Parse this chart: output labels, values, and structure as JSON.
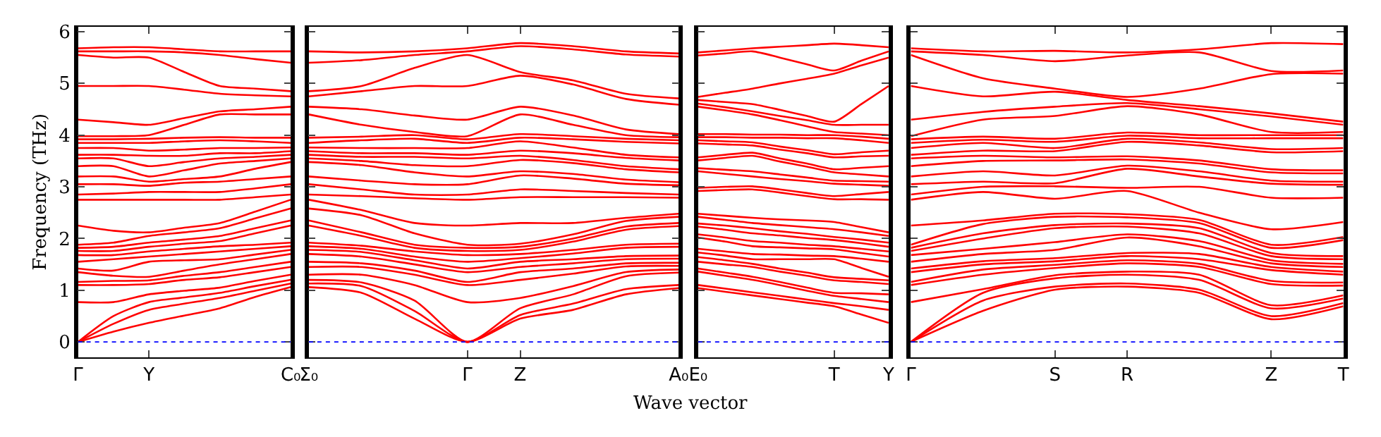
{
  "chart_data": [
    {
      "type": "line",
      "ylabel": "Frequency (THz)",
      "categories": [
        "Γ",
        null,
        "Y",
        null,
        null,
        null,
        "C₀"
      ],
      "ylim": [
        -0.3,
        6.1
      ],
      "yticks": [
        0,
        1,
        2,
        3,
        4,
        5,
        6
      ],
      "ref_lines": [
        {
          "axis": "y",
          "value": 0,
          "color": "#0000ff",
          "line_style": "dotted"
        }
      ],
      "series": [
        {
          "color": "#ff0000",
          "values": [
            0,
            0.2,
            0.37,
            0.51,
            0.65,
            0.87,
            1.06
          ]
        },
        {
          "color": "#ff0000",
          "values": [
            0,
            0.35,
            0.62,
            0.74,
            0.85,
            0.99,
            1.13
          ]
        },
        {
          "color": "#ff0000",
          "values": [
            0,
            0.5,
            0.77,
            0.86,
            0.95,
            1.08,
            1.2
          ]
        },
        {
          "color": "#ff0000",
          "values": [
            0.77,
            0.77,
            0.92,
            0.99,
            1.05,
            1.18,
            1.3
          ]
        },
        {
          "color": "#ff0000",
          "values": [
            1.1,
            1.1,
            1.12,
            1.2,
            1.25,
            1.35,
            1.45
          ]
        },
        {
          "color": "#ff0000",
          "values": [
            1.16,
            1.18,
            1.19,
            1.28,
            1.35,
            1.45,
            1.55
          ]
        },
        {
          "color": "#ff0000",
          "values": [
            1.35,
            1.28,
            1.26,
            1.38,
            1.5,
            1.6,
            1.7
          ]
        },
        {
          "color": "#ff0000",
          "values": [
            1.42,
            1.38,
            1.55,
            1.58,
            1.6,
            1.69,
            1.78
          ]
        },
        {
          "color": "#ff0000",
          "values": [
            1.55,
            1.6,
            1.65,
            1.7,
            1.75,
            1.8,
            1.85
          ]
        },
        {
          "color": "#ff0000",
          "values": [
            1.68,
            1.68,
            1.75,
            1.8,
            1.85,
            1.88,
            1.92
          ]
        },
        {
          "color": "#ff0000",
          "values": [
            1.76,
            1.76,
            1.84,
            1.9,
            1.95,
            2.1,
            2.25
          ]
        },
        {
          "color": "#ff0000",
          "values": [
            1.82,
            1.84,
            1.92,
            1.98,
            2.05,
            2.2,
            2.35
          ]
        },
        {
          "color": "#ff0000",
          "values": [
            1.88,
            1.92,
            2.05,
            2.12,
            2.2,
            2.39,
            2.58
          ]
        },
        {
          "color": "#ff0000",
          "values": [
            2.25,
            2.15,
            2.12,
            2.21,
            2.3,
            2.52,
            2.75
          ]
        },
        {
          "color": "#ff0000",
          "values": [
            2.75,
            2.75,
            2.75,
            2.75,
            2.75,
            2.8,
            2.85
          ]
        },
        {
          "color": "#ff0000",
          "values": [
            2.85,
            2.87,
            2.9,
            2.9,
            2.9,
            2.97,
            3.05
          ]
        },
        {
          "color": "#ff0000",
          "values": [
            3.05,
            3.05,
            3.02,
            3.08,
            3.1,
            3.15,
            3.2
          ]
        },
        {
          "color": "#ff0000",
          "values": [
            3.2,
            3.2,
            3.1,
            3.15,
            3.2,
            3.35,
            3.48
          ]
        },
        {
          "color": "#ff0000",
          "values": [
            3.4,
            3.4,
            3.2,
            3.32,
            3.45,
            3.5,
            3.55
          ]
        },
        {
          "color": "#ff0000",
          "values": [
            3.55,
            3.55,
            3.4,
            3.48,
            3.55,
            3.58,
            3.62
          ]
        },
        {
          "color": "#ff0000",
          "values": [
            3.62,
            3.62,
            3.6,
            3.6,
            3.65,
            3.65,
            3.69
          ]
        },
        {
          "color": "#ff0000",
          "values": [
            3.75,
            3.75,
            3.7,
            3.72,
            3.75,
            3.75,
            3.76
          ]
        },
        {
          "color": "#ff0000",
          "values": [
            3.85,
            3.85,
            3.85,
            3.88,
            3.9,
            3.88,
            3.85
          ]
        },
        {
          "color": "#ff0000",
          "values": [
            3.92,
            3.92,
            3.93,
            3.95,
            3.96,
            3.95,
            3.95
          ]
        },
        {
          "color": "#ff0000",
          "values": [
            3.98,
            3.98,
            4.0,
            4.2,
            4.4,
            4.4,
            4.4
          ]
        },
        {
          "color": "#ff0000",
          "values": [
            4.3,
            4.25,
            4.2,
            4.33,
            4.46,
            4.5,
            4.55
          ]
        },
        {
          "color": "#ff0000",
          "values": [
            4.95,
            4.95,
            4.95,
            4.88,
            4.8,
            4.77,
            4.75
          ]
        },
        {
          "color": "#ff0000",
          "values": [
            5.55,
            5.5,
            5.5,
            5.22,
            4.95,
            4.9,
            4.85
          ]
        },
        {
          "color": "#ff0000",
          "values": [
            5.62,
            5.62,
            5.62,
            5.6,
            5.55,
            5.47,
            5.4
          ]
        },
        {
          "color": "#ff0000",
          "values": [
            5.68,
            5.7,
            5.7,
            5.66,
            5.62,
            5.62,
            5.62
          ]
        }
      ]
    },
    {
      "type": "line",
      "tick_labels": "x",
      "categories": [
        "Σ₀",
        null,
        null,
        "Γ",
        "Z",
        null,
        null,
        "A₀"
      ],
      "ylim": [
        -0.3,
        6.1
      ],
      "yticks": [
        0,
        1,
        2,
        3,
        4,
        5,
        6
      ],
      "ref_lines": [
        {
          "axis": "y",
          "value": 0,
          "color": "#0000ff",
          "line_style": "dotted"
        }
      ],
      "series": [
        {
          "color": "#ff0000",
          "values": [
            1.06,
            0.95,
            0.45,
            0,
            0.45,
            0.62,
            0.92,
            1.04
          ]
        },
        {
          "color": "#ff0000",
          "values": [
            1.13,
            1.08,
            0.6,
            0,
            0.52,
            0.74,
            1.02,
            1.1
          ]
        },
        {
          "color": "#ff0000",
          "values": [
            1.2,
            1.15,
            0.8,
            0,
            0.65,
            0.92,
            1.27,
            1.34
          ]
        },
        {
          "color": "#ff0000",
          "values": [
            1.3,
            1.3,
            1.1,
            0.77,
            0.85,
            1.08,
            1.35,
            1.4
          ]
        },
        {
          "color": "#ff0000",
          "values": [
            1.45,
            1.45,
            1.3,
            1.1,
            1.2,
            1.32,
            1.46,
            1.47
          ]
        },
        {
          "color": "#ff0000",
          "values": [
            1.55,
            1.52,
            1.38,
            1.16,
            1.35,
            1.42,
            1.52,
            1.53
          ]
        },
        {
          "color": "#ff0000",
          "values": [
            1.7,
            1.65,
            1.5,
            1.35,
            1.45,
            1.52,
            1.6,
            1.61
          ]
        },
        {
          "color": "#ff0000",
          "values": [
            1.78,
            1.74,
            1.58,
            1.42,
            1.55,
            1.6,
            1.66,
            1.67
          ]
        },
        {
          "color": "#ff0000",
          "values": [
            1.85,
            1.8,
            1.65,
            1.55,
            1.62,
            1.71,
            1.82,
            1.84
          ]
        },
        {
          "color": "#ff0000",
          "values": [
            1.92,
            1.86,
            1.75,
            1.68,
            1.7,
            1.78,
            1.88,
            1.9
          ]
        },
        {
          "color": "#ff0000",
          "values": [
            2.25,
            2.05,
            1.82,
            1.76,
            1.78,
            1.94,
            2.17,
            2.24
          ]
        },
        {
          "color": "#ff0000",
          "values": [
            2.35,
            2.12,
            1.88,
            1.82,
            1.84,
            2.0,
            2.23,
            2.3
          ]
        },
        {
          "color": "#ff0000",
          "values": [
            2.58,
            2.45,
            2.1,
            1.88,
            1.9,
            2.08,
            2.34,
            2.42
          ]
        },
        {
          "color": "#ff0000",
          "values": [
            2.75,
            2.55,
            2.3,
            2.25,
            2.3,
            2.3,
            2.4,
            2.48
          ]
        },
        {
          "color": "#ff0000",
          "values": [
            2.85,
            2.82,
            2.78,
            2.75,
            2.8,
            2.8,
            2.8,
            2.79
          ]
        },
        {
          "color": "#ff0000",
          "values": [
            3.05,
            2.95,
            2.85,
            2.85,
            2.95,
            2.92,
            2.88,
            2.85
          ]
        },
        {
          "color": "#ff0000",
          "values": [
            3.2,
            3.12,
            3.05,
            3.05,
            3.22,
            3.16,
            3.06,
            3.03
          ]
        },
        {
          "color": "#ff0000",
          "values": [
            3.48,
            3.42,
            3.28,
            3.2,
            3.3,
            3.25,
            3.14,
            3.09
          ]
        },
        {
          "color": "#ff0000",
          "values": [
            3.55,
            3.5,
            3.42,
            3.4,
            3.52,
            3.46,
            3.34,
            3.28
          ]
        },
        {
          "color": "#ff0000",
          "values": [
            3.62,
            3.58,
            3.58,
            3.55,
            3.6,
            3.52,
            3.4,
            3.34
          ]
        },
        {
          "color": "#ff0000",
          "values": [
            3.69,
            3.65,
            3.65,
            3.62,
            3.7,
            3.65,
            3.56,
            3.51
          ]
        },
        {
          "color": "#ff0000",
          "values": [
            3.76,
            3.75,
            3.75,
            3.75,
            3.88,
            3.76,
            3.62,
            3.57
          ]
        },
        {
          "color": "#ff0000",
          "values": [
            3.85,
            3.9,
            3.93,
            3.85,
            3.95,
            3.92,
            3.87,
            3.84
          ]
        },
        {
          "color": "#ff0000",
          "values": [
            3.95,
            3.97,
            4.0,
            3.92,
            4.02,
            3.98,
            3.93,
            3.9
          ]
        },
        {
          "color": "#ff0000",
          "values": [
            4.4,
            4.2,
            4.06,
            3.98,
            4.4,
            4.2,
            4.0,
            3.96
          ]
        },
        {
          "color": "#ff0000",
          "values": [
            4.55,
            4.5,
            4.38,
            4.3,
            4.55,
            4.38,
            4.11,
            4.02
          ]
        },
        {
          "color": "#ff0000",
          "values": [
            4.75,
            4.85,
            4.95,
            4.95,
            5.15,
            4.98,
            4.7,
            4.59
          ]
        },
        {
          "color": "#ff0000",
          "values": [
            4.85,
            4.95,
            5.3,
            5.55,
            5.22,
            5.06,
            4.8,
            4.71
          ]
        },
        {
          "color": "#ff0000",
          "values": [
            5.4,
            5.45,
            5.55,
            5.62,
            5.72,
            5.66,
            5.56,
            5.52
          ]
        },
        {
          "color": "#ff0000",
          "values": [
            5.62,
            5.6,
            5.62,
            5.68,
            5.78,
            5.72,
            5.62,
            5.58
          ]
        }
      ]
    },
    {
      "type": "line",
      "tick_labels": "x",
      "xlabel": "Wave vector",
      "categories": [
        "E₀",
        null,
        null,
        null,
        null,
        "T",
        null,
        "Y"
      ],
      "ylim": [
        -0.3,
        6.1
      ],
      "yticks": [
        0,
        1,
        2,
        3,
        4,
        5,
        6
      ],
      "ref_lines": [
        {
          "axis": "y",
          "value": 0,
          "color": "#0000ff",
          "line_style": "dotted"
        }
      ],
      "series": [
        {
          "color": "#ff0000",
          "values": [
            1.04,
            0.97,
            0.9,
            0.83,
            0.76,
            0.69,
            0.53,
            0.37
          ]
        },
        {
          "color": "#ff0000",
          "values": [
            1.1,
            1.03,
            0.96,
            0.89,
            0.82,
            0.75,
            0.69,
            0.62
          ]
        },
        {
          "color": "#ff0000",
          "values": [
            1.36,
            1.28,
            1.2,
            1.1,
            0.99,
            0.89,
            0.83,
            0.77
          ]
        },
        {
          "color": "#ff0000",
          "values": [
            1.42,
            1.34,
            1.26,
            1.16,
            1.05,
            0.95,
            0.94,
            0.92
          ]
        },
        {
          "color": "#ff0000",
          "values": [
            1.55,
            1.5,
            1.45,
            1.36,
            1.28,
            1.19,
            1.16,
            1.12
          ]
        },
        {
          "color": "#ff0000",
          "values": [
            1.64,
            1.58,
            1.51,
            1.42,
            1.34,
            1.25,
            1.22,
            1.19
          ]
        },
        {
          "color": "#ff0000",
          "values": [
            1.73,
            1.67,
            1.6,
            1.6,
            1.6,
            1.6,
            1.43,
            1.26
          ]
        },
        {
          "color": "#ff0000",
          "values": [
            1.8,
            1.75,
            1.7,
            1.69,
            1.67,
            1.66,
            1.61,
            1.55
          ]
        },
        {
          "color": "#ff0000",
          "values": [
            2.02,
            1.94,
            1.85,
            1.83,
            1.81,
            1.79,
            1.72,
            1.65
          ]
        },
        {
          "color": "#ff0000",
          "values": [
            2.08,
            2.02,
            1.95,
            1.92,
            1.88,
            1.85,
            1.8,
            1.75
          ]
        },
        {
          "color": "#ff0000",
          "values": [
            2.23,
            2.17,
            2.1,
            2.06,
            2.01,
            1.97,
            1.91,
            1.84
          ]
        },
        {
          "color": "#ff0000",
          "values": [
            2.29,
            2.25,
            2.2,
            2.14,
            2.09,
            2.03,
            1.98,
            1.92
          ]
        },
        {
          "color": "#ff0000",
          "values": [
            2.42,
            2.36,
            2.3,
            2.26,
            2.22,
            2.18,
            2.12,
            2.05
          ]
        },
        {
          "color": "#ff0000",
          "values": [
            2.48,
            2.44,
            2.4,
            2.37,
            2.35,
            2.32,
            2.22,
            2.12
          ]
        },
        {
          "color": "#ff0000",
          "values": [
            2.92,
            2.94,
            2.95,
            2.89,
            2.82,
            2.76,
            2.76,
            2.75
          ]
        },
        {
          "color": "#ff0000",
          "values": [
            2.98,
            3.0,
            3.01,
            2.95,
            2.88,
            2.82,
            2.86,
            2.9
          ]
        },
        {
          "color": "#ff0000",
          "values": [
            3.3,
            3.25,
            3.2,
            3.15,
            3.11,
            3.06,
            3.04,
            3.02
          ]
        },
        {
          "color": "#ff0000",
          "values": [
            3.36,
            3.33,
            3.3,
            3.24,
            3.18,
            3.12,
            3.11,
            3.1
          ]
        },
        {
          "color": "#ff0000",
          "values": [
            3.51,
            3.56,
            3.6,
            3.49,
            3.39,
            3.28,
            3.24,
            3.2
          ]
        },
        {
          "color": "#ff0000",
          "values": [
            3.57,
            3.62,
            3.66,
            3.55,
            3.45,
            3.34,
            3.37,
            3.4
          ]
        },
        {
          "color": "#ff0000",
          "values": [
            3.84,
            3.82,
            3.8,
            3.72,
            3.65,
            3.57,
            3.59,
            3.6
          ]
        },
        {
          "color": "#ff0000",
          "values": [
            3.9,
            3.88,
            3.86,
            3.78,
            3.71,
            3.63,
            3.67,
            3.7
          ]
        },
        {
          "color": "#ff0000",
          "values": [
            3.96,
            3.96,
            3.95,
            3.95,
            3.94,
            3.94,
            3.9,
            3.85
          ]
        },
        {
          "color": "#ff0000",
          "values": [
            4.02,
            4.02,
            4.01,
            4.01,
            4.0,
            4.0,
            3.97,
            3.93
          ]
        },
        {
          "color": "#ff0000",
          "values": [
            4.55,
            4.48,
            4.4,
            4.29,
            4.17,
            4.06,
            4.03,
            4.0
          ]
        },
        {
          "color": "#ff0000",
          "values": [
            4.61,
            4.54,
            4.46,
            4.37,
            4.29,
            4.2,
            4.2,
            4.2
          ]
        },
        {
          "color": "#ff0000",
          "values": [
            4.68,
            4.64,
            4.6,
            4.49,
            4.37,
            4.26,
            4.6,
            4.95
          ]
        },
        {
          "color": "#ff0000",
          "values": [
            4.74,
            4.82,
            4.9,
            5.0,
            5.09,
            5.19,
            5.35,
            5.5
          ]
        },
        {
          "color": "#ff0000",
          "values": [
            5.54,
            5.58,
            5.62,
            5.5,
            5.37,
            5.25,
            5.44,
            5.62
          ]
        },
        {
          "color": "#ff0000",
          "values": [
            5.6,
            5.64,
            5.68,
            5.71,
            5.74,
            5.77,
            5.74,
            5.7
          ]
        }
      ]
    },
    {
      "type": "line",
      "tick_labels": "x",
      "categories": [
        "Γ",
        null,
        "S",
        "R",
        null,
        "Z",
        "T"
      ],
      "ylim": [
        -0.3,
        6.1
      ],
      "yticks": [
        0,
        1,
        2,
        3,
        4,
        5,
        6
      ],
      "ref_lines": [
        {
          "axis": "y",
          "value": 0,
          "color": "#0000ff",
          "line_style": "dotted"
        }
      ],
      "series": [
        {
          "color": "#ff0000",
          "values": [
            0,
            0.6,
            1.01,
            1.07,
            0.95,
            0.44,
            0.69
          ]
        },
        {
          "color": "#ff0000",
          "values": [
            0,
            0.8,
            1.07,
            1.13,
            1.01,
            0.5,
            0.75
          ]
        },
        {
          "color": "#ff0000",
          "values": [
            0,
            0.95,
            1.23,
            1.3,
            1.2,
            0.65,
            0.84
          ]
        },
        {
          "color": "#ff0000",
          "values": [
            0.77,
            1.02,
            1.29,
            1.36,
            1.3,
            0.71,
            0.9
          ]
        },
        {
          "color": "#ff0000",
          "values": [
            1.1,
            1.3,
            1.43,
            1.52,
            1.45,
            1.12,
            1.09
          ]
        },
        {
          "color": "#ff0000",
          "values": [
            1.16,
            1.4,
            1.49,
            1.58,
            1.51,
            1.18,
            1.15
          ]
        },
        {
          "color": "#ff0000",
          "values": [
            1.35,
            1.5,
            1.56,
            1.66,
            1.6,
            1.39,
            1.3
          ]
        },
        {
          "color": "#ff0000",
          "values": [
            1.42,
            1.56,
            1.62,
            1.72,
            1.7,
            1.45,
            1.36
          ]
        },
        {
          "color": "#ff0000",
          "values": [
            1.55,
            1.7,
            1.78,
            2.02,
            1.85,
            1.52,
            1.45
          ]
        },
        {
          "color": "#ff0000",
          "values": [
            1.68,
            1.8,
            1.93,
            2.08,
            1.95,
            1.58,
            1.51
          ]
        },
        {
          "color": "#ff0000",
          "values": [
            1.76,
            2.0,
            2.2,
            2.23,
            2.1,
            1.66,
            1.6
          ]
        },
        {
          "color": "#ff0000",
          "values": [
            1.82,
            2.1,
            2.26,
            2.29,
            2.2,
            1.72,
            1.66
          ]
        },
        {
          "color": "#ff0000",
          "values": [
            1.88,
            2.28,
            2.42,
            2.41,
            2.3,
            1.82,
            1.97
          ]
        },
        {
          "color": "#ff0000",
          "values": [
            2.25,
            2.35,
            2.48,
            2.47,
            2.36,
            1.88,
            2.03
          ]
        },
        {
          "color": "#ff0000",
          "values": [
            2.75,
            2.9,
            2.77,
            2.92,
            2.5,
            2.18,
            2.32
          ]
        },
        {
          "color": "#ff0000",
          "values": [
            2.85,
            3.0,
            3.01,
            2.98,
            3.0,
            2.79,
            2.79
          ]
        },
        {
          "color": "#ff0000",
          "values": [
            3.05,
            3.1,
            3.07,
            3.35,
            3.2,
            3.06,
            3.04
          ]
        },
        {
          "color": "#ff0000",
          "values": [
            3.2,
            3.3,
            3.22,
            3.41,
            3.3,
            3.12,
            3.1
          ]
        },
        {
          "color": "#ff0000",
          "values": [
            3.4,
            3.5,
            3.51,
            3.53,
            3.45,
            3.28,
            3.26
          ]
        },
        {
          "color": "#ff0000",
          "values": [
            3.55,
            3.6,
            3.57,
            3.59,
            3.51,
            3.34,
            3.32
          ]
        },
        {
          "color": "#ff0000",
          "values": [
            3.62,
            3.7,
            3.69,
            3.87,
            3.8,
            3.67,
            3.69
          ]
        },
        {
          "color": "#ff0000",
          "values": [
            3.75,
            3.85,
            3.75,
            3.93,
            3.86,
            3.73,
            3.75
          ]
        },
        {
          "color": "#ff0000",
          "values": [
            3.85,
            3.91,
            3.87,
            3.99,
            3.94,
            3.94,
            3.94
          ]
        },
        {
          "color": "#ff0000",
          "values": [
            3.92,
            3.97,
            3.93,
            4.05,
            4.0,
            4.0,
            4.0
          ]
        },
        {
          "color": "#ff0000",
          "values": [
            3.98,
            4.3,
            4.37,
            4.56,
            4.4,
            4.06,
            4.06
          ]
        },
        {
          "color": "#ff0000",
          "values": [
            4.3,
            4.45,
            4.55,
            4.62,
            4.5,
            4.36,
            4.2
          ]
        },
        {
          "color": "#ff0000",
          "values": [
            4.95,
            4.75,
            4.84,
            4.68,
            4.56,
            4.42,
            4.26
          ]
        },
        {
          "color": "#ff0000",
          "values": [
            5.55,
            5.1,
            4.9,
            4.74,
            4.9,
            5.18,
            5.19
          ]
        },
        {
          "color": "#ff0000",
          "values": [
            5.62,
            5.55,
            5.43,
            5.54,
            5.6,
            5.24,
            5.25
          ]
        },
        {
          "color": "#ff0000",
          "values": [
            5.68,
            5.62,
            5.63,
            5.6,
            5.66,
            5.78,
            5.76
          ]
        }
      ]
    }
  ]
}
